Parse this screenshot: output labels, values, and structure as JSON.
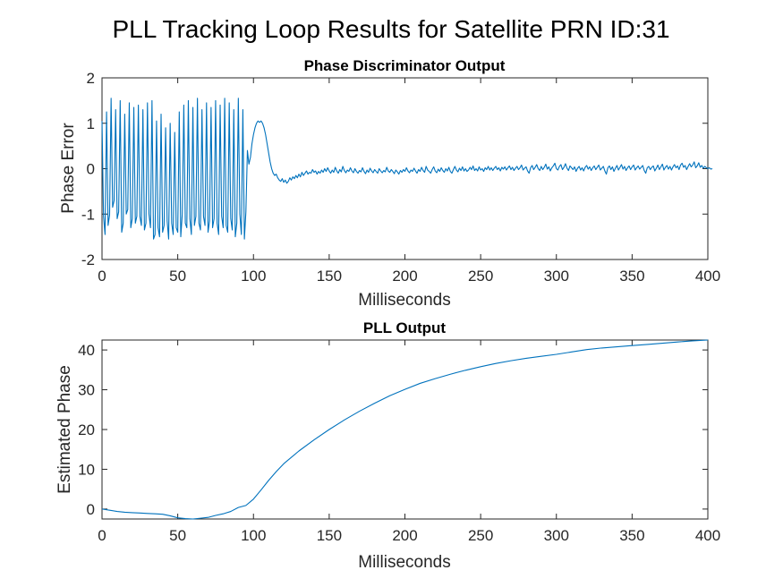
{
  "figure_title": "PLL Tracking Loop Results for Satellite PRN ID:31",
  "colors": {
    "series": "#0072bd",
    "axis": "#262626",
    "background": "#ffffff"
  },
  "chart_data": [
    {
      "type": "line",
      "title": "Phase Discriminator Output",
      "xlabel": "Milliseconds",
      "ylabel": "Phase Error",
      "xlim": [
        0,
        400
      ],
      "ylim": [
        -2,
        2
      ],
      "xticks": [
        0,
        50,
        100,
        150,
        200,
        250,
        300,
        350,
        400
      ],
      "yticks": [
        -2,
        -1,
        0,
        1,
        2
      ],
      "grid": false,
      "series": [
        {
          "x_start": 0,
          "x_step": 1,
          "values": [
            1.05,
            -1.05,
            -1.45,
            1.25,
            -1.25,
            -1.02,
            1.55,
            -0.85,
            -0.7,
            1.3,
            -1.1,
            -0.95,
            1.5,
            -1.4,
            -1.2,
            1.2,
            -1.0,
            -0.9,
            1.45,
            -1.3,
            -1.1,
            1.35,
            -1.2,
            -1.05,
            1.4,
            -1.05,
            -1.25,
            1.3,
            -1.35,
            -1.2,
            1.45,
            -1.0,
            -1.3,
            1.5,
            -1.55,
            -1.45,
            1.05,
            -1.3,
            -1.5,
            1.2,
            -1.4,
            -1.25,
            0.9,
            -1.15,
            -1.55,
            1.0,
            -1.2,
            -1.45,
            0.8,
            -1.3,
            -1.4,
            1.25,
            -1.5,
            -1.0,
            1.4,
            -1.2,
            -1.3,
            1.5,
            -1.1,
            -1.45,
            1.35,
            -1.25,
            -1.05,
            1.55,
            -1.2,
            -1.35,
            1.3,
            -1.05,
            -1.25,
            1.45,
            -1.4,
            -1.15,
            1.35,
            -1.3,
            -1.1,
            1.5,
            -1.2,
            -1.45,
            1.4,
            -1.05,
            -1.3,
            1.55,
            -1.25,
            -1.4,
            1.45,
            -1.1,
            -1.35,
            1.3,
            -1.5,
            -1.2,
            1.55,
            -1.0,
            -1.45,
            1.3,
            -1.55,
            -0.95,
            0.4,
            0.1,
            0.25,
            0.55,
            0.75,
            0.9,
            1.0,
            1.05,
            1.02,
            1.05,
            1.0,
            0.9,
            0.75,
            0.55,
            0.35,
            0.15,
            0.0,
            -0.1,
            -0.15,
            -0.12,
            -0.2,
            -0.25,
            -0.28,
            -0.22,
            -0.3,
            -0.25,
            -0.32,
            -0.28,
            -0.2,
            -0.25,
            -0.18,
            -0.22,
            -0.15,
            -0.2,
            -0.12,
            -0.18,
            -0.08,
            -0.15,
            -0.1,
            -0.05,
            -0.12,
            -0.08,
            -0.1,
            -0.02,
            -0.08,
            -0.05,
            -0.12,
            -0.06,
            -0.1,
            -0.03,
            -0.08,
            0.0,
            -0.06,
            0.02,
            -0.05,
            -0.1,
            -0.03,
            -0.08,
            0.03,
            -0.05,
            -0.1,
            -0.02,
            -0.07,
            0.05,
            -0.04,
            -0.09,
            -0.03,
            -0.06,
            0.02,
            -0.05,
            -0.09,
            0.0,
            -0.06,
            -0.1,
            -0.04,
            -0.07,
            0.02,
            -0.06,
            -0.11,
            -0.03,
            -0.08,
            0.01,
            -0.05,
            -0.09,
            -0.02,
            -0.06,
            -0.1,
            0.0,
            -0.05,
            -0.09,
            -0.04,
            -0.07,
            0.03,
            -0.05,
            -0.08,
            -0.02,
            -0.06,
            -0.11,
            -0.03,
            -0.07,
            -0.12,
            -0.04,
            -0.08,
            -0.02,
            -0.06,
            0.02,
            -0.05,
            -0.09,
            -0.03,
            -0.06,
            0.01,
            -0.05,
            -0.1,
            -0.02,
            -0.06,
            0.03,
            -0.04,
            -0.08,
            0.05,
            -0.03,
            -0.06,
            -0.1,
            -0.02,
            0.04,
            -0.05,
            -0.09,
            -0.01,
            -0.06,
            0.02,
            -0.04,
            -0.08,
            0.0,
            -0.05,
            0.03,
            -0.06,
            -0.1,
            -0.02,
            0.05,
            -0.03,
            -0.07,
            0.01,
            -0.04,
            0.04,
            -0.05,
            0.0,
            -0.06,
            -0.03,
            0.03,
            -0.02,
            0.06,
            -0.04,
            0.0,
            -0.05,
            0.04,
            -0.03,
            0.0,
            -0.06,
            0.02,
            -0.02,
            0.05,
            -0.03,
            0.02,
            -0.04,
            0.01,
            0.05,
            -0.02,
            0.02,
            -0.05,
            0.03,
            -0.01,
            0.04,
            -0.03,
            0.02,
            0.06,
            -0.02,
            0.03,
            -0.04,
            0.01,
            0.05,
            -0.02,
            0.02,
            0.08,
            -0.03,
            0.01,
            0.04,
            -0.05,
            -0.1,
            0.02,
            0.07,
            -0.02,
            0.03,
            0.09,
            0.0,
            -0.04,
            0.05,
            -0.02,
            0.03,
            0.1,
            -0.01,
            0.04,
            -0.05,
            0.02,
            0.06,
            0.12,
            0.0,
            -0.03,
            0.05,
            0.09,
            -0.02,
            0.03,
            0.11,
            0.01,
            -0.04,
            0.06,
            0.02,
            -0.02,
            0.04,
            -0.06,
            0.01,
            0.05,
            -0.03,
            0.02,
            -0.05,
            0.03,
            0.07,
            -0.01,
            0.04,
            -0.04,
            0.02,
            0.06,
            -0.02,
            0.03,
            0.08,
            -0.03,
            0.01,
            0.05,
            -0.05,
            -0.12,
            0.02,
            0.06,
            -0.02,
            0.04,
            -0.06,
            0.01,
            0.07,
            -0.03,
            0.03,
            0.09,
            -0.01,
            0.05,
            -0.04,
            0.02,
            0.06,
            -0.02,
            0.04,
            0.08,
            -0.03,
            0.02,
            0.06,
            -0.01,
            0.03,
            0.07,
            -0.04,
            -0.1,
            0.02,
            0.05,
            -0.02,
            0.03,
            0.06,
            -0.05,
            0.01,
            0.08,
            -0.02,
            0.04,
            0.1,
            -0.03,
            0.03,
            0.07,
            -0.01,
            0.05,
            -0.03,
            0.04,
            0.09,
            0.02,
            0.06,
            -0.02,
            0.08,
            0.12,
            0.03,
            0.07,
            -0.02,
            0.05,
            0.11,
            0.04,
            0.08,
            0.15,
            0.02,
            0.06,
            0.13,
            0.03,
            0.07,
            0.01,
            0.05,
            0.02,
            0.0,
            0.02,
            -0.01,
            0.0
          ]
        }
      ]
    },
    {
      "type": "line",
      "title": "PLL Output",
      "xlabel": "Milliseconds",
      "ylabel": "Estimated Phase",
      "xlim": [
        0,
        400
      ],
      "ylim": [
        -2.5,
        42.5
      ],
      "xticks": [
        0,
        50,
        100,
        150,
        200,
        250,
        300,
        350,
        400
      ],
      "yticks": [
        0,
        10,
        20,
        30,
        40
      ],
      "grid": false,
      "series": [
        {
          "x": [
            0,
            5,
            10,
            15,
            20,
            25,
            30,
            35,
            40,
            45,
            50,
            55,
            60,
            65,
            70,
            75,
            80,
            85,
            90,
            95,
            100,
            105,
            110,
            115,
            120,
            130,
            140,
            150,
            160,
            170,
            180,
            190,
            200,
            210,
            220,
            230,
            240,
            250,
            260,
            270,
            280,
            290,
            300,
            310,
            320,
            330,
            340,
            350,
            360,
            370,
            380,
            390,
            400
          ],
          "y": [
            0.0,
            -0.3,
            -0.6,
            -0.8,
            -0.9,
            -1.0,
            -1.1,
            -1.2,
            -1.3,
            -1.7,
            -2.2,
            -2.4,
            -2.5,
            -2.3,
            -2.1,
            -1.6,
            -1.2,
            -0.6,
            0.4,
            0.9,
            2.5,
            4.8,
            7.2,
            9.4,
            11.4,
            14.6,
            17.4,
            20.0,
            22.4,
            24.6,
            26.6,
            28.5,
            30.1,
            31.6,
            32.8,
            33.9,
            34.9,
            35.8,
            36.6,
            37.3,
            37.9,
            38.4,
            38.9,
            39.5,
            40.1,
            40.5,
            40.8,
            41.1,
            41.4,
            41.7,
            42.0,
            42.3,
            42.6
          ]
        }
      ]
    }
  ]
}
